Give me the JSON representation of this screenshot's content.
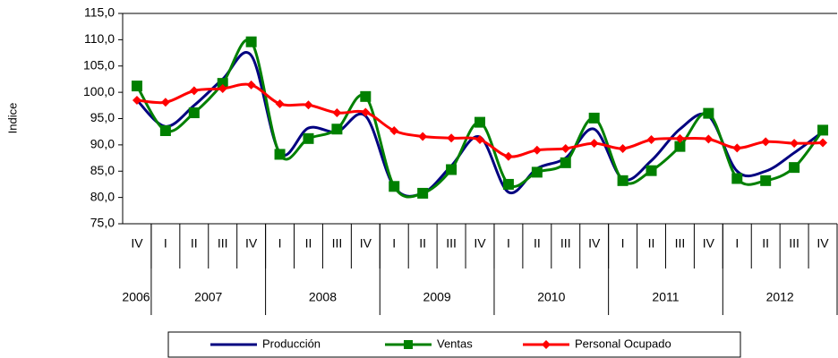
{
  "chart_data": {
    "type": "line",
    "y_label": "Indice",
    "categories": [
      "IV",
      "I",
      "II",
      "III",
      "IV",
      "I",
      "II",
      "III",
      "IV",
      "I",
      "II",
      "III",
      "IV",
      "I",
      "II",
      "III",
      "IV",
      "I",
      "II",
      "III",
      "IV",
      "I",
      "II",
      "III",
      "IV"
    ],
    "groups": [
      {
        "label": "2006",
        "count": 1
      },
      {
        "label": "2007",
        "count": 4
      },
      {
        "label": "2008",
        "count": 4
      },
      {
        "label": "2009",
        "count": 4
      },
      {
        "label": "2010",
        "count": 4
      },
      {
        "label": "2011",
        "count": 4
      },
      {
        "label": "2012",
        "count": 4
      }
    ],
    "series": [
      {
        "name": "Producción",
        "color": "#000080",
        "marker": "none",
        "values": [
          98.5,
          93.5,
          97.5,
          102.5,
          107.0,
          88.5,
          93.2,
          92.5,
          95.5,
          82.0,
          80.8,
          86.0,
          91.5,
          81.0,
          85.5,
          87.5,
          93.0,
          83.5,
          87.0,
          93.0,
          95.5,
          85.0,
          85.0,
          88.5,
          92.5
        ]
      },
      {
        "name": "Ventas",
        "color": "#008000",
        "marker": "square",
        "values": [
          101.2,
          92.7,
          96.1,
          101.7,
          109.6,
          88.2,
          91.2,
          93.0,
          99.2,
          82.1,
          80.8,
          85.3,
          94.3,
          82.5,
          84.8,
          86.6,
          95.1,
          83.2,
          85.1,
          89.7,
          96.0,
          83.6,
          83.2,
          85.7,
          92.8
        ]
      },
      {
        "name": "Personal Ocupado",
        "color": "#ff0000",
        "marker": "diamond",
        "values": [
          98.5,
          98.1,
          100.3,
          100.7,
          101.4,
          97.8,
          97.6,
          96.1,
          96.2,
          92.7,
          91.6,
          91.3,
          91.0,
          87.8,
          89.0,
          89.3,
          90.3,
          89.3,
          91.0,
          91.2,
          91.1,
          89.4,
          90.6,
          90.3,
          90.4
        ]
      }
    ],
    "ylim": [
      75,
      115
    ],
    "yticks": [
      {
        "value": 75,
        "label": "75,0"
      },
      {
        "value": 80,
        "label": "80,0"
      },
      {
        "value": 85,
        "label": "85,0"
      },
      {
        "value": 90,
        "label": "90,0"
      },
      {
        "value": 95,
        "label": "95,0"
      },
      {
        "value": 100,
        "label": "100,0"
      },
      {
        "value": 105,
        "label": "105,0"
      },
      {
        "value": 110,
        "label": "110,0"
      },
      {
        "value": 115,
        "label": "115,0"
      }
    ],
    "legend": "bottom"
  }
}
